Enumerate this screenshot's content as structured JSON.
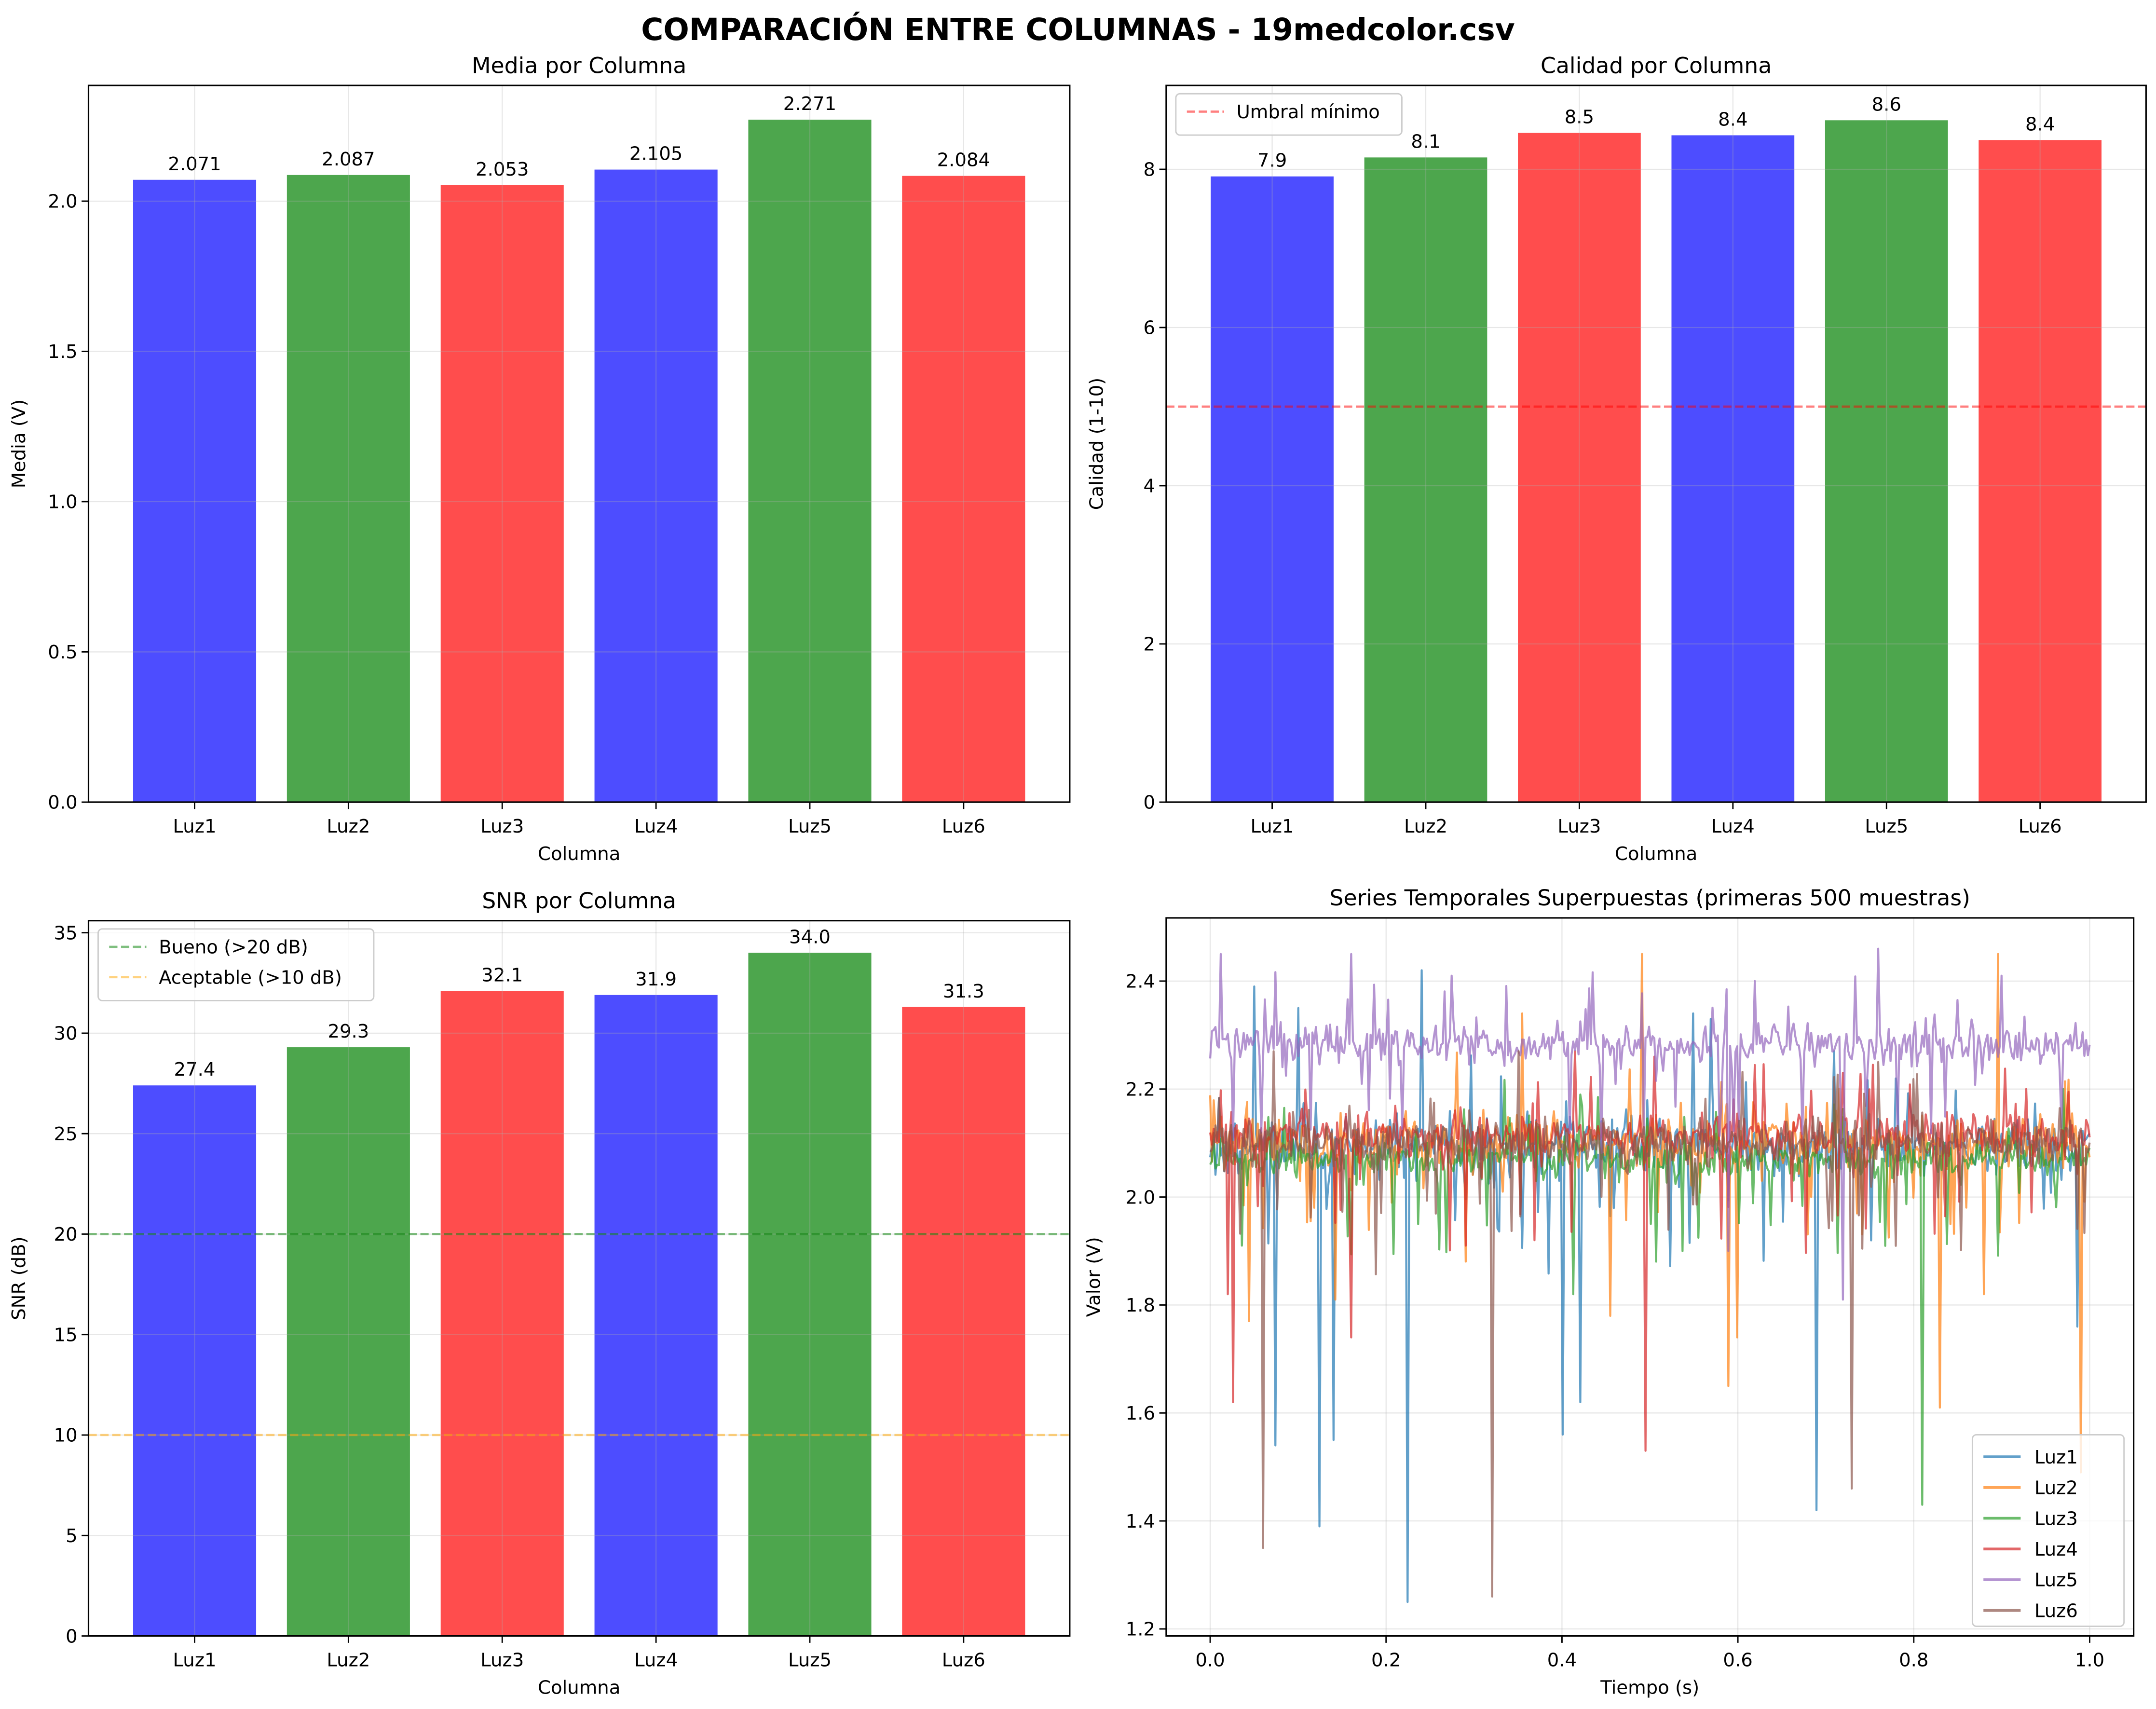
{
  "suptitle": "COMPARACIÓN ENTRE COLUMNAS - 19medcolor.csv",
  "colors": {
    "blue": "#4d4dff",
    "green": "#4da64d",
    "red": "#ff4d4d",
    "threshold_red": "#ff0000",
    "good_green": "#008000",
    "ok_orange": "#ffa500"
  },
  "chart_data": [
    {
      "type": "bar",
      "title": "Media por Columna",
      "xlabel": "Columna",
      "ylabel": "Media (V)",
      "categories": [
        "Luz1",
        "Luz2",
        "Luz3",
        "Luz4",
        "Luz5",
        "Luz6"
      ],
      "values": [
        2.071,
        2.087,
        2.053,
        2.105,
        2.271,
        2.084
      ],
      "value_labels": [
        "2.071",
        "2.087",
        "2.053",
        "2.105",
        "2.271",
        "2.084"
      ],
      "bar_colors": [
        "#4d4dff",
        "#4da64d",
        "#ff4d4d",
        "#4d4dff",
        "#4da64d",
        "#ff4d4d"
      ],
      "ylim": [
        0,
        2.385
      ],
      "yticks": [
        "0.0",
        "0.5",
        "1.0",
        "1.5",
        "2.0"
      ],
      "grid": true,
      "hlines": [],
      "legend": null
    },
    {
      "type": "bar",
      "title": "Calidad por Columna",
      "xlabel": "Columna",
      "ylabel": "Calidad (1-10)",
      "categories": [
        "Luz1",
        "Luz2",
        "Luz3",
        "Luz4",
        "Luz5",
        "Luz6"
      ],
      "values": [
        7.91,
        8.15,
        8.46,
        8.43,
        8.62,
        8.37
      ],
      "value_labels": [
        "7.9",
        "8.1",
        "8.5",
        "8.4",
        "8.6",
        "8.4"
      ],
      "bar_colors": [
        "#4d4dff",
        "#4da64d",
        "#ff4d4d",
        "#4d4dff",
        "#4da64d",
        "#ff4d4d"
      ],
      "ylim": [
        0,
        9.06
      ],
      "yticks": [
        "0",
        "2",
        "4",
        "6",
        "8"
      ],
      "grid": true,
      "hlines": [
        {
          "y": 5,
          "color": "#ff0000",
          "label": "Umbral mínimo"
        }
      ],
      "legend": "top-left"
    },
    {
      "type": "bar",
      "title": "SNR por Columna",
      "xlabel": "Columna",
      "ylabel": "SNR (dB)",
      "categories": [
        "Luz1",
        "Luz2",
        "Luz3",
        "Luz4",
        "Luz5",
        "Luz6"
      ],
      "values": [
        27.4,
        29.3,
        32.1,
        31.9,
        34.0,
        31.3
      ],
      "value_labels": [
        "27.4",
        "29.3",
        "32.1",
        "31.9",
        "34.0",
        "31.3"
      ],
      "bar_colors": [
        "#4d4dff",
        "#4da64d",
        "#ff4d4d",
        "#4d4dff",
        "#4da64d",
        "#ff4d4d"
      ],
      "ylim": [
        0,
        35.6
      ],
      "yticks": [
        "0",
        "5",
        "10",
        "15",
        "20",
        "25",
        "30",
        "35"
      ],
      "grid": true,
      "hlines": [
        {
          "y": 20,
          "color": "#008000",
          "label": "Bueno (>20 dB)"
        },
        {
          "y": 10,
          "color": "#ffa500",
          "label": "Aceptable (>10 dB)"
        }
      ],
      "legend": "top-left"
    },
    {
      "type": "line",
      "title": "Series Temporales Superpuestas (primeras 500 muestras)",
      "xlabel": "Tiempo (s)",
      "ylabel": "Valor (V)",
      "n_samples": 500,
      "xlim": [
        -0.05,
        1.05
      ],
      "ylim": [
        1.187,
        2.517
      ],
      "xticks": [
        "0.0",
        "0.2",
        "0.4",
        "0.6",
        "0.8",
        "1.0"
      ],
      "yticks": [
        "1.2",
        "1.4",
        "1.6",
        "1.8",
        "2.0",
        "2.2",
        "2.4"
      ],
      "grid": true,
      "legend": "bottom-right",
      "series": [
        {
          "name": "Luz1",
          "color": "#1f77b4",
          "mean": 2.09,
          "noise": 0.025,
          "spikes": [
            [
              0.05,
              2.39
            ],
            [
              0.075,
              1.54
            ],
            [
              0.1,
              2.35
            ],
            [
              0.125,
              1.39
            ],
            [
              0.14,
              1.55
            ],
            [
              0.225,
              1.25
            ],
            [
              0.24,
              2.42
            ],
            [
              0.4,
              1.56
            ],
            [
              0.42,
              1.62
            ],
            [
              0.55,
              2.34
            ],
            [
              0.57,
              2.33
            ],
            [
              0.69,
              1.42
            ],
            [
              0.71,
              2.27
            ],
            [
              0.985,
              1.76
            ]
          ]
        },
        {
          "name": "Luz2",
          "color": "#ff7f0e",
          "mean": 2.1,
          "noise": 0.025,
          "spikes": [
            [
              0.045,
              1.77
            ],
            [
              0.142,
              1.81
            ],
            [
              0.355,
              2.34
            ],
            [
              0.455,
              1.78
            ],
            [
              0.49,
              2.45
            ],
            [
              0.59,
              1.65
            ],
            [
              0.6,
              1.74
            ],
            [
              0.83,
              1.61
            ],
            [
              0.88,
              1.82
            ],
            [
              0.895,
              2.45
            ],
            [
              0.99,
              1.49
            ]
          ]
        },
        {
          "name": "Luz3",
          "color": "#2ca02c",
          "mean": 2.07,
          "noise": 0.018,
          "spikes": [
            [
              0.036,
              1.91
            ],
            [
              0.413,
              1.82
            ],
            [
              0.538,
              1.9
            ],
            [
              0.81,
              1.43
            ],
            [
              0.97,
              2.2
            ]
          ]
        },
        {
          "name": "Luz4",
          "color": "#d62728",
          "mean": 2.115,
          "noise": 0.02,
          "spikes": [
            [
              0.02,
              1.82
            ],
            [
              0.026,
              1.62
            ],
            [
              0.16,
              1.74
            ],
            [
              0.29,
              1.91
            ],
            [
              0.368,
              1.92
            ],
            [
              0.415,
              2.27
            ],
            [
              0.495,
              1.53
            ],
            [
              0.505,
              2.26
            ],
            [
              0.72,
              2.23
            ]
          ]
        },
        {
          "name": "Luz5",
          "color": "#9467bd",
          "mean": 2.285,
          "noise": 0.018,
          "spikes": [
            [
              0.012,
              2.45
            ],
            [
              0.16,
              2.45
            ],
            [
              0.62,
              2.4
            ],
            [
              0.72,
              1.81
            ],
            [
              0.76,
              2.46
            ],
            [
              0.9,
              2.41
            ],
            [
              0.59,
              1.9
            ]
          ]
        },
        {
          "name": "Luz6",
          "color": "#8c564b",
          "mean": 2.1,
          "noise": 0.02,
          "spikes": [
            [
              0.06,
              1.35
            ],
            [
              0.072,
              2.27
            ],
            [
              0.32,
              1.26
            ],
            [
              0.35,
              2.27
            ],
            [
              0.73,
              1.46
            ],
            [
              0.76,
              2.25
            ]
          ]
        }
      ]
    }
  ]
}
